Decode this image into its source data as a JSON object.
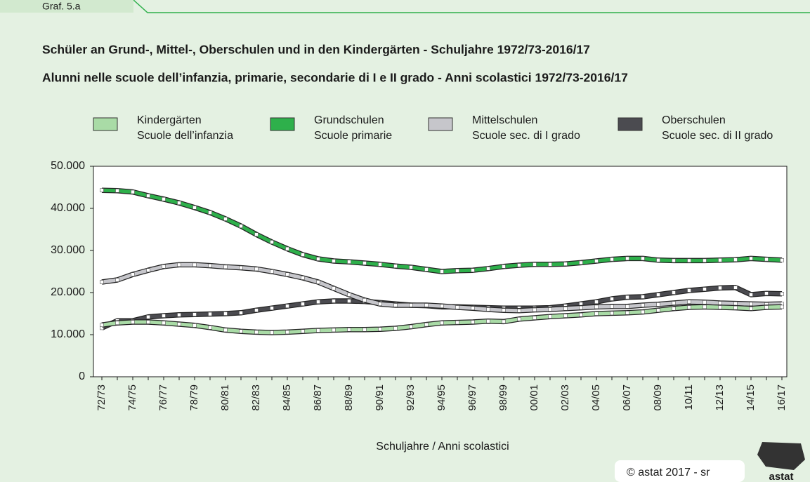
{
  "tab": "Graf. 5.a",
  "copyright": "© astat 2017 - sr",
  "logo": "astat",
  "chart_data": {
    "type": "line",
    "title": "Schüler an Grund-, Mittel-, Oberschulen und in den Kindergärten - Schuljahre 1972/73-2016/17",
    "subtitle": "Alunni nelle scuole dell’infanzia, primarie, secondarie di I e II grado - Anni scolastici 1972/73-2016/17",
    "x_label": "Schuljahre / Anni scolastici",
    "categories": [
      "72/73",
      null,
      "74/75",
      null,
      "76/77",
      null,
      "78/79",
      null,
      "80/81",
      null,
      "82/83",
      null,
      "84/85",
      null,
      "86/87",
      null,
      "88/89",
      null,
      "90/91",
      null,
      "92/93",
      null,
      "94/95",
      null,
      "96/97",
      null,
      "98/99",
      null,
      "00/01",
      null,
      "02/03",
      null,
      "04/05",
      null,
      "06/07",
      null,
      "08/09",
      null,
      "10/11",
      null,
      "12/13",
      null,
      "14/15",
      null,
      "16/17"
    ],
    "ylim": [
      0,
      50000
    ],
    "yticks": [
      0,
      {
        "value": 10000,
        "label": "10.000"
      },
      {
        "value": 20000,
        "label": "20.000"
      },
      {
        "value": 30000,
        "label": "30.000"
      },
      {
        "value": 40000,
        "label": "40.000"
      },
      {
        "value": 50000,
        "label": "50.000"
      }
    ],
    "series": [
      {
        "name": "Kindergärten",
        "name_it": "Scuole dell’infanzia",
        "color": "#a9dba6",
        "values": [
          12300,
          12800,
          13000,
          13000,
          12800,
          12500,
          12200,
          11700,
          11100,
          10800,
          10600,
          10500,
          10600,
          10800,
          11000,
          11100,
          11200,
          11200,
          11300,
          11500,
          11900,
          12400,
          12800,
          12900,
          13000,
          13200,
          13100,
          13700,
          14000,
          14300,
          14500,
          14700,
          15000,
          15100,
          15200,
          15400,
          15800,
          16200,
          16500,
          16600,
          16500,
          16400,
          16200,
          16500,
          16600
        ]
      },
      {
        "name": "Grundschulen",
        "name_it": "Scuole primarie",
        "color": "#2eb04b",
        "values": [
          44300,
          44200,
          43900,
          43000,
          42200,
          41300,
          40200,
          39000,
          37500,
          35800,
          33800,
          32000,
          30400,
          29000,
          28000,
          27500,
          27300,
          27000,
          26700,
          26300,
          26000,
          25500,
          25000,
          25200,
          25300,
          25700,
          26200,
          26500,
          26700,
          26700,
          26800,
          27100,
          27500,
          27900,
          28100,
          28100,
          27700,
          27600,
          27600,
          27600,
          27700,
          27800,
          28100,
          27900,
          27700
        ]
      },
      {
        "name": "Mittelschulen",
        "name_it": "Scuole sec. di I grado",
        "color": "#c6c6cb",
        "values": [
          22500,
          23000,
          24300,
          25300,
          26200,
          26600,
          26600,
          26400,
          26100,
          25900,
          25600,
          25000,
          24300,
          23500,
          22500,
          21000,
          19500,
          18200,
          17300,
          17000,
          17000,
          17000,
          16800,
          16500,
          16300,
          16000,
          15800,
          15700,
          15900,
          16000,
          16200,
          16400,
          16600,
          16700,
          16700,
          17000,
          17200,
          17500,
          17800,
          17700,
          17500,
          17400,
          17300,
          17200,
          17300
        ]
      },
      {
        "name": "Oberschulen",
        "name_it": "Scuole sec. di II grado",
        "color": "#4b4b50",
        "values": [
          11600,
          13300,
          13300,
          14200,
          14500,
          14700,
          14800,
          14900,
          15000,
          15200,
          15800,
          16300,
          16800,
          17300,
          17800,
          18000,
          18000,
          17900,
          17600,
          17300,
          17000,
          16900,
          16600,
          16600,
          16500,
          16400,
          16300,
          16300,
          16300,
          16400,
          16800,
          17300,
          17800,
          18500,
          18900,
          19000,
          19500,
          20000,
          20500,
          20800,
          21100,
          21200,
          19500,
          19800,
          19700
        ]
      }
    ]
  }
}
